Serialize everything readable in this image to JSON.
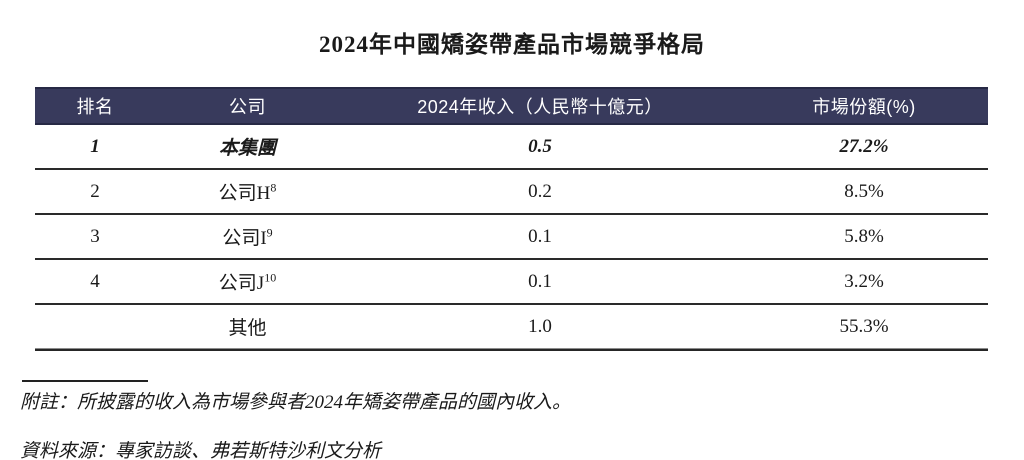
{
  "title": "2024年中國矯姿帶產品市場競爭格局",
  "table": {
    "headers": {
      "rank": "排名",
      "company": "公司",
      "revenue": "2024年收入（人民幣十億元）",
      "share": "市場份額(%)"
    },
    "rows": [
      {
        "rank": "1",
        "company": "本集團",
        "company_sup": "",
        "revenue": "0.5",
        "share": "27.2%",
        "emphasis": true
      },
      {
        "rank": "2",
        "company": "公司H",
        "company_sup": "8",
        "revenue": "0.2",
        "share": "8.5%",
        "emphasis": false
      },
      {
        "rank": "3",
        "company": "公司I",
        "company_sup": "9",
        "revenue": "0.1",
        "share": "5.8%",
        "emphasis": false
      },
      {
        "rank": "4",
        "company": "公司J",
        "company_sup": "10",
        "revenue": "0.1",
        "share": "3.2%",
        "emphasis": false
      },
      {
        "rank": "",
        "company": "其他",
        "company_sup": "",
        "revenue": "1.0",
        "share": "55.3%",
        "emphasis": false
      }
    ]
  },
  "footnote": "附註：所披露的收入為市場參與者2024年矯姿帶產品的國內收入。",
  "source": "資料來源：專家訪談、弗若斯特沙利文分析",
  "colors": {
    "header_bg": "#383A5C",
    "header_text": "#FFFFFF",
    "row_line": "#2A2A2A"
  }
}
